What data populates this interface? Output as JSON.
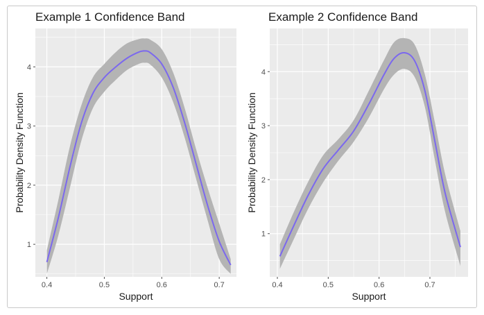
{
  "chart_data": [
    {
      "type": "line",
      "title": "Example 1 Confidence Band",
      "xlabel": "Support",
      "ylabel": "Probability Density Function",
      "xlim": [
        0.38,
        0.73
      ],
      "ylim": [
        0.45,
        4.65
      ],
      "x_ticks": [
        0.4,
        0.5,
        0.6,
        0.7
      ],
      "x_tick_labels": [
        "0.4",
        "0.5",
        "0.6",
        "0.7"
      ],
      "y_ticks": [
        1,
        2,
        3,
        4
      ],
      "y_tick_labels": [
        "1",
        "2",
        "3",
        "4"
      ],
      "grid": true,
      "colors": {
        "line": "#7b68ee",
        "band": "#b4b4b4",
        "panel": "#ebebeb",
        "grid": "#ffffff"
      },
      "series": [
        {
          "x": [
            0.4,
            0.42,
            0.44,
            0.46,
            0.48,
            0.5,
            0.52,
            0.54,
            0.56,
            0.57,
            0.58,
            0.6,
            0.62,
            0.64,
            0.66,
            0.68,
            0.7,
            0.72
          ],
          "y": [
            0.7,
            1.45,
            2.3,
            3.05,
            3.55,
            3.82,
            4.0,
            4.15,
            4.25,
            4.27,
            4.24,
            4.05,
            3.65,
            3.05,
            2.35,
            1.65,
            1.05,
            0.65
          ],
          "upper": [
            0.9,
            1.75,
            2.65,
            3.35,
            3.82,
            4.05,
            4.25,
            4.4,
            4.47,
            4.48,
            4.46,
            4.3,
            3.9,
            3.3,
            2.6,
            1.95,
            1.35,
            0.75
          ],
          "lower": [
            0.5,
            1.15,
            1.95,
            2.75,
            3.3,
            3.58,
            3.78,
            3.95,
            4.05,
            4.07,
            4.04,
            3.82,
            3.4,
            2.8,
            2.1,
            1.4,
            0.75,
            0.5
          ]
        }
      ]
    },
    {
      "type": "line",
      "title": "Example 2 Confidence Band",
      "xlabel": "Support",
      "ylabel": "Probability Density Function",
      "xlim": [
        0.385,
        0.775
      ],
      "ylim": [
        0.2,
        4.8
      ],
      "x_ticks": [
        0.4,
        0.5,
        0.6,
        0.7
      ],
      "x_tick_labels": [
        "0.4",
        "0.5",
        "0.6",
        "0.7"
      ],
      "y_ticks": [
        1,
        2,
        3,
        4
      ],
      "y_tick_labels": [
        "1",
        "2",
        "3",
        "4"
      ],
      "grid": true,
      "colors": {
        "line": "#7b68ee",
        "band": "#b4b4b4",
        "panel": "#ebebeb",
        "grid": "#ffffff"
      },
      "series": [
        {
          "x": [
            0.405,
            0.43,
            0.46,
            0.49,
            0.52,
            0.55,
            0.58,
            0.61,
            0.63,
            0.65,
            0.67,
            0.69,
            0.71,
            0.73,
            0.76
          ],
          "y": [
            0.58,
            1.1,
            1.7,
            2.2,
            2.55,
            2.9,
            3.4,
            3.95,
            4.25,
            4.35,
            4.2,
            3.65,
            2.7,
            1.75,
            0.75
          ],
          "upper": [
            0.8,
            1.35,
            1.95,
            2.45,
            2.75,
            3.1,
            3.65,
            4.22,
            4.55,
            4.62,
            4.5,
            3.95,
            3.05,
            2.1,
            1.05
          ],
          "lower": [
            0.35,
            0.85,
            1.45,
            1.95,
            2.35,
            2.7,
            3.15,
            3.68,
            3.95,
            4.05,
            3.9,
            3.35,
            2.35,
            1.4,
            0.4
          ]
        }
      ]
    }
  ]
}
